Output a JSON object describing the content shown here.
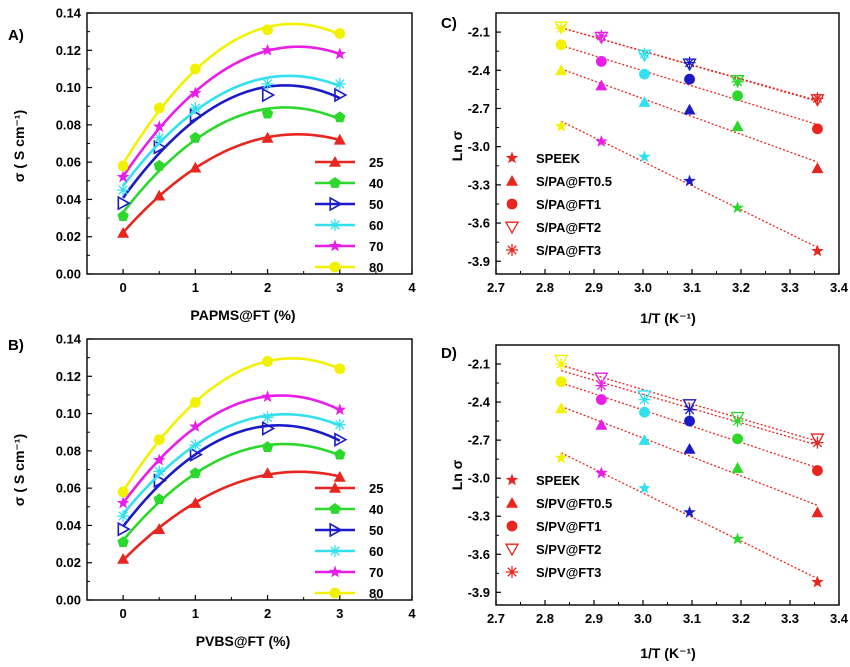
{
  "chart_data": [
    {
      "panel": "A)",
      "type": "line",
      "xlabel": "PAPMS@FT (%)",
      "ylabel": "σ  ( S cm⁻¹)",
      "xlim": [
        -0.5,
        4
      ],
      "ylim": [
        0,
        0.14
      ],
      "xticks": [
        0,
        1,
        2,
        3,
        4
      ],
      "yticks": [
        0.0,
        0.02,
        0.04,
        0.06,
        0.08,
        0.1,
        0.12,
        0.14
      ],
      "legend_position": "bottom-right",
      "x": [
        0,
        0.5,
        1,
        2,
        3
      ],
      "series": [
        {
          "name": "25",
          "color": "#e8251e",
          "marker": "triangle",
          "values": [
            0.022,
            0.042,
            0.057,
            0.073,
            0.072
          ]
        },
        {
          "name": "40",
          "color": "#2bd82b",
          "marker": "pentagon",
          "values": [
            0.031,
            0.058,
            0.073,
            0.086,
            0.084
          ]
        },
        {
          "name": "50",
          "color": "#1a1ac8",
          "marker": "triangle-right",
          "values": [
            0.038,
            0.068,
            0.085,
            0.096,
            0.096
          ]
        },
        {
          "name": "60",
          "color": "#33e0ee",
          "marker": "asterisk",
          "values": [
            0.045,
            0.073,
            0.089,
            0.102,
            0.102
          ]
        },
        {
          "name": "70",
          "color": "#e81ee8",
          "marker": "star",
          "values": [
            0.052,
            0.079,
            0.097,
            0.12,
            0.118
          ]
        },
        {
          "name": "80",
          "color": "#f2f200",
          "marker": "circle",
          "values": [
            0.058,
            0.089,
            0.11,
            0.131,
            0.129
          ]
        }
      ]
    },
    {
      "panel": "B)",
      "type": "line",
      "xlabel": "PVBS@FT (%)",
      "ylabel": "σ  ( S cm⁻¹)",
      "xlim": [
        -0.5,
        4
      ],
      "ylim": [
        0,
        0.14
      ],
      "xticks": [
        0,
        1,
        2,
        3,
        4
      ],
      "yticks": [
        0.0,
        0.02,
        0.04,
        0.06,
        0.08,
        0.1,
        0.12,
        0.14
      ],
      "legend_position": "bottom-right",
      "x": [
        0,
        0.5,
        1,
        2,
        3
      ],
      "series": [
        {
          "name": "25",
          "color": "#e8251e",
          "marker": "triangle",
          "values": [
            0.022,
            0.038,
            0.052,
            0.068,
            0.066
          ]
        },
        {
          "name": "40",
          "color": "#2bd82b",
          "marker": "pentagon",
          "values": [
            0.031,
            0.054,
            0.068,
            0.082,
            0.078
          ]
        },
        {
          "name": "50",
          "color": "#1a1ac8",
          "marker": "triangle-right",
          "values": [
            0.038,
            0.064,
            0.078,
            0.092,
            0.086
          ]
        },
        {
          "name": "60",
          "color": "#33e0ee",
          "marker": "asterisk",
          "values": [
            0.045,
            0.069,
            0.083,
            0.098,
            0.094
          ]
        },
        {
          "name": "70",
          "color": "#e81ee8",
          "marker": "star",
          "values": [
            0.052,
            0.075,
            0.093,
            0.109,
            0.102
          ]
        },
        {
          "name": "80",
          "color": "#f2f200",
          "marker": "circle",
          "values": [
            0.058,
            0.086,
            0.106,
            0.128,
            0.124
          ]
        }
      ]
    },
    {
      "panel": "C)",
      "type": "scatter",
      "xlabel": "1/T (K⁻¹)",
      "ylabel": "Ln σ",
      "xlim": [
        2.7,
        3.4
      ],
      "ylim": [
        -4.0,
        -1.95
      ],
      "xticks": [
        2.7,
        2.8,
        2.9,
        3.0,
        3.1,
        3.2,
        3.3,
        3.4
      ],
      "yticks": [
        -3.9,
        -3.6,
        -3.3,
        -3.0,
        -2.7,
        -2.4,
        -2.1
      ],
      "legend_position": "bottom-left",
      "x": [
        2.833,
        2.915,
        3.003,
        3.095,
        3.193,
        3.356
      ],
      "point_colors": [
        "#f2f200",
        "#e81ee8",
        "#33e0ee",
        "#1a1ac8",
        "#2bd82b",
        "#e8251e"
      ],
      "series": [
        {
          "name": "SPEEK",
          "marker": "star",
          "values": [
            -2.84,
            -2.96,
            -3.08,
            -3.27,
            -3.48,
            -3.82
          ]
        },
        {
          "name": "S/PA@FT0.5",
          "marker": "triangle",
          "values": [
            -2.4,
            -2.52,
            -2.65,
            -2.71,
            -2.84,
            -3.17
          ]
        },
        {
          "name": "S/PA@FT1",
          "marker": "circle",
          "values": [
            -2.2,
            -2.33,
            -2.43,
            -2.47,
            -2.6,
            -2.86
          ]
        },
        {
          "name": "S/PA@FT2",
          "marker": "triangle-down-open",
          "values": [
            -2.06,
            -2.14,
            -2.28,
            -2.35,
            -2.48,
            -2.63
          ]
        },
        {
          "name": "S/PA@FT3",
          "marker": "asterisk",
          "values": [
            -2.07,
            -2.13,
            -2.27,
            -2.34,
            -2.49,
            -2.62
          ]
        }
      ]
    },
    {
      "panel": "D)",
      "type": "scatter",
      "xlabel": "1/T (K⁻¹)",
      "ylabel": "Ln σ",
      "xlim": [
        2.7,
        3.4
      ],
      "ylim": [
        -4.0,
        -1.95
      ],
      "xticks": [
        2.7,
        2.8,
        2.9,
        3.0,
        3.1,
        3.2,
        3.3,
        3.4
      ],
      "yticks": [
        -3.9,
        -3.6,
        -3.3,
        -3.0,
        -2.7,
        -2.4,
        -2.1
      ],
      "legend_position": "bottom-left",
      "x": [
        2.833,
        2.915,
        3.003,
        3.095,
        3.193,
        3.356
      ],
      "point_colors": [
        "#f2f200",
        "#e81ee8",
        "#33e0ee",
        "#1a1ac8",
        "#2bd82b",
        "#e8251e"
      ],
      "series": [
        {
          "name": "SPEEK",
          "marker": "star",
          "values": [
            -2.84,
            -2.96,
            -3.08,
            -3.27,
            -3.48,
            -3.82
          ]
        },
        {
          "name": "S/PV@FT0.5",
          "marker": "triangle",
          "values": [
            -2.45,
            -2.58,
            -2.7,
            -2.77,
            -2.92,
            -3.27
          ]
        },
        {
          "name": "S/PV@FT1",
          "marker": "circle",
          "values": [
            -2.24,
            -2.38,
            -2.48,
            -2.55,
            -2.69,
            -2.94
          ]
        },
        {
          "name": "S/PV@FT2",
          "marker": "triangle-down-open",
          "values": [
            -2.07,
            -2.21,
            -2.35,
            -2.42,
            -2.52,
            -2.69
          ]
        },
        {
          "name": "S/PV@FT3",
          "marker": "asterisk",
          "values": [
            -2.1,
            -2.27,
            -2.38,
            -2.46,
            -2.55,
            -2.72
          ]
        }
      ]
    }
  ]
}
